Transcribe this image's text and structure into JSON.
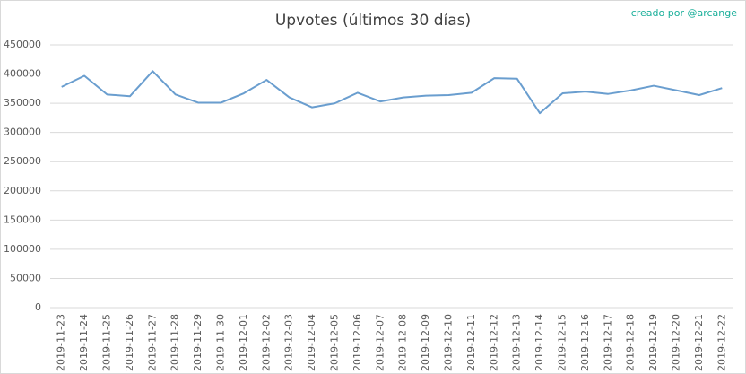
{
  "chart_data": {
    "type": "line",
    "title": "Upvotes (últimos 30 días)",
    "annotation": "creado por @arcange",
    "categories": [
      "2019-11-23",
      "2019-11-24",
      "2019-11-25",
      "2019-11-26",
      "2019-11-27",
      "2019-11-28",
      "2019-11-29",
      "2019-11-30",
      "2019-12-01",
      "2019-12-02",
      "2019-12-03",
      "2019-12-04",
      "2019-12-05",
      "2019-12-06",
      "2019-12-07",
      "2019-12-08",
      "2019-12-09",
      "2019-12-10",
      "2019-12-11",
      "2019-12-12",
      "2019-12-13",
      "2019-12-14",
      "2019-12-15",
      "2019-12-16",
      "2019-12-17",
      "2019-12-18",
      "2019-12-19",
      "2019-12-20",
      "2019-12-21",
      "2019-12-22"
    ],
    "values": [
      378000,
      397000,
      365000,
      362000,
      405000,
      365000,
      351000,
      351000,
      367000,
      390000,
      360000,
      343000,
      350000,
      368000,
      353000,
      360000,
      363000,
      364000,
      368000,
      393000,
      392000,
      333000,
      367000,
      370000,
      366000,
      372000,
      380000,
      372000,
      364000,
      376000
    ],
    "color": "#6a9ecf",
    "ylim": [
      0,
      450000
    ],
    "yticks": [
      0,
      50000,
      100000,
      150000,
      200000,
      250000,
      300000,
      350000,
      400000,
      450000
    ],
    "grid": true
  }
}
